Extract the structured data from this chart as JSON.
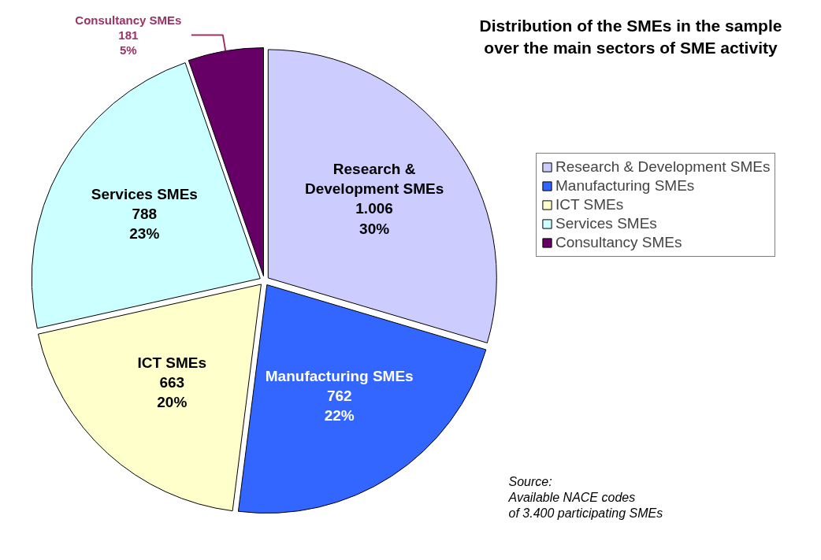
{
  "chart_data": {
    "type": "pie",
    "title": "Distribution of the SMEs in the sample over the main sectors of SME activity",
    "categories": [
      "Research & Development SMEs",
      "Manufacturing SMEs",
      "ICT SMEs",
      "Services SMEs",
      "Consultancy SMEs"
    ],
    "values": [
      1006,
      762,
      663,
      788,
      181
    ],
    "value_labels": [
      "1.006\n30%",
      "762\n22%",
      "663\n20%",
      "788\n23%",
      "181\n5%"
    ],
    "colors": [
      "#ccccff",
      "#3366ff",
      "#ffffcc",
      "#ccffff",
      "#660066"
    ],
    "legend": "right",
    "annotations": [
      "Source:\nAvailable NACE codes\nof 3.400 participating SMEs"
    ]
  }
}
